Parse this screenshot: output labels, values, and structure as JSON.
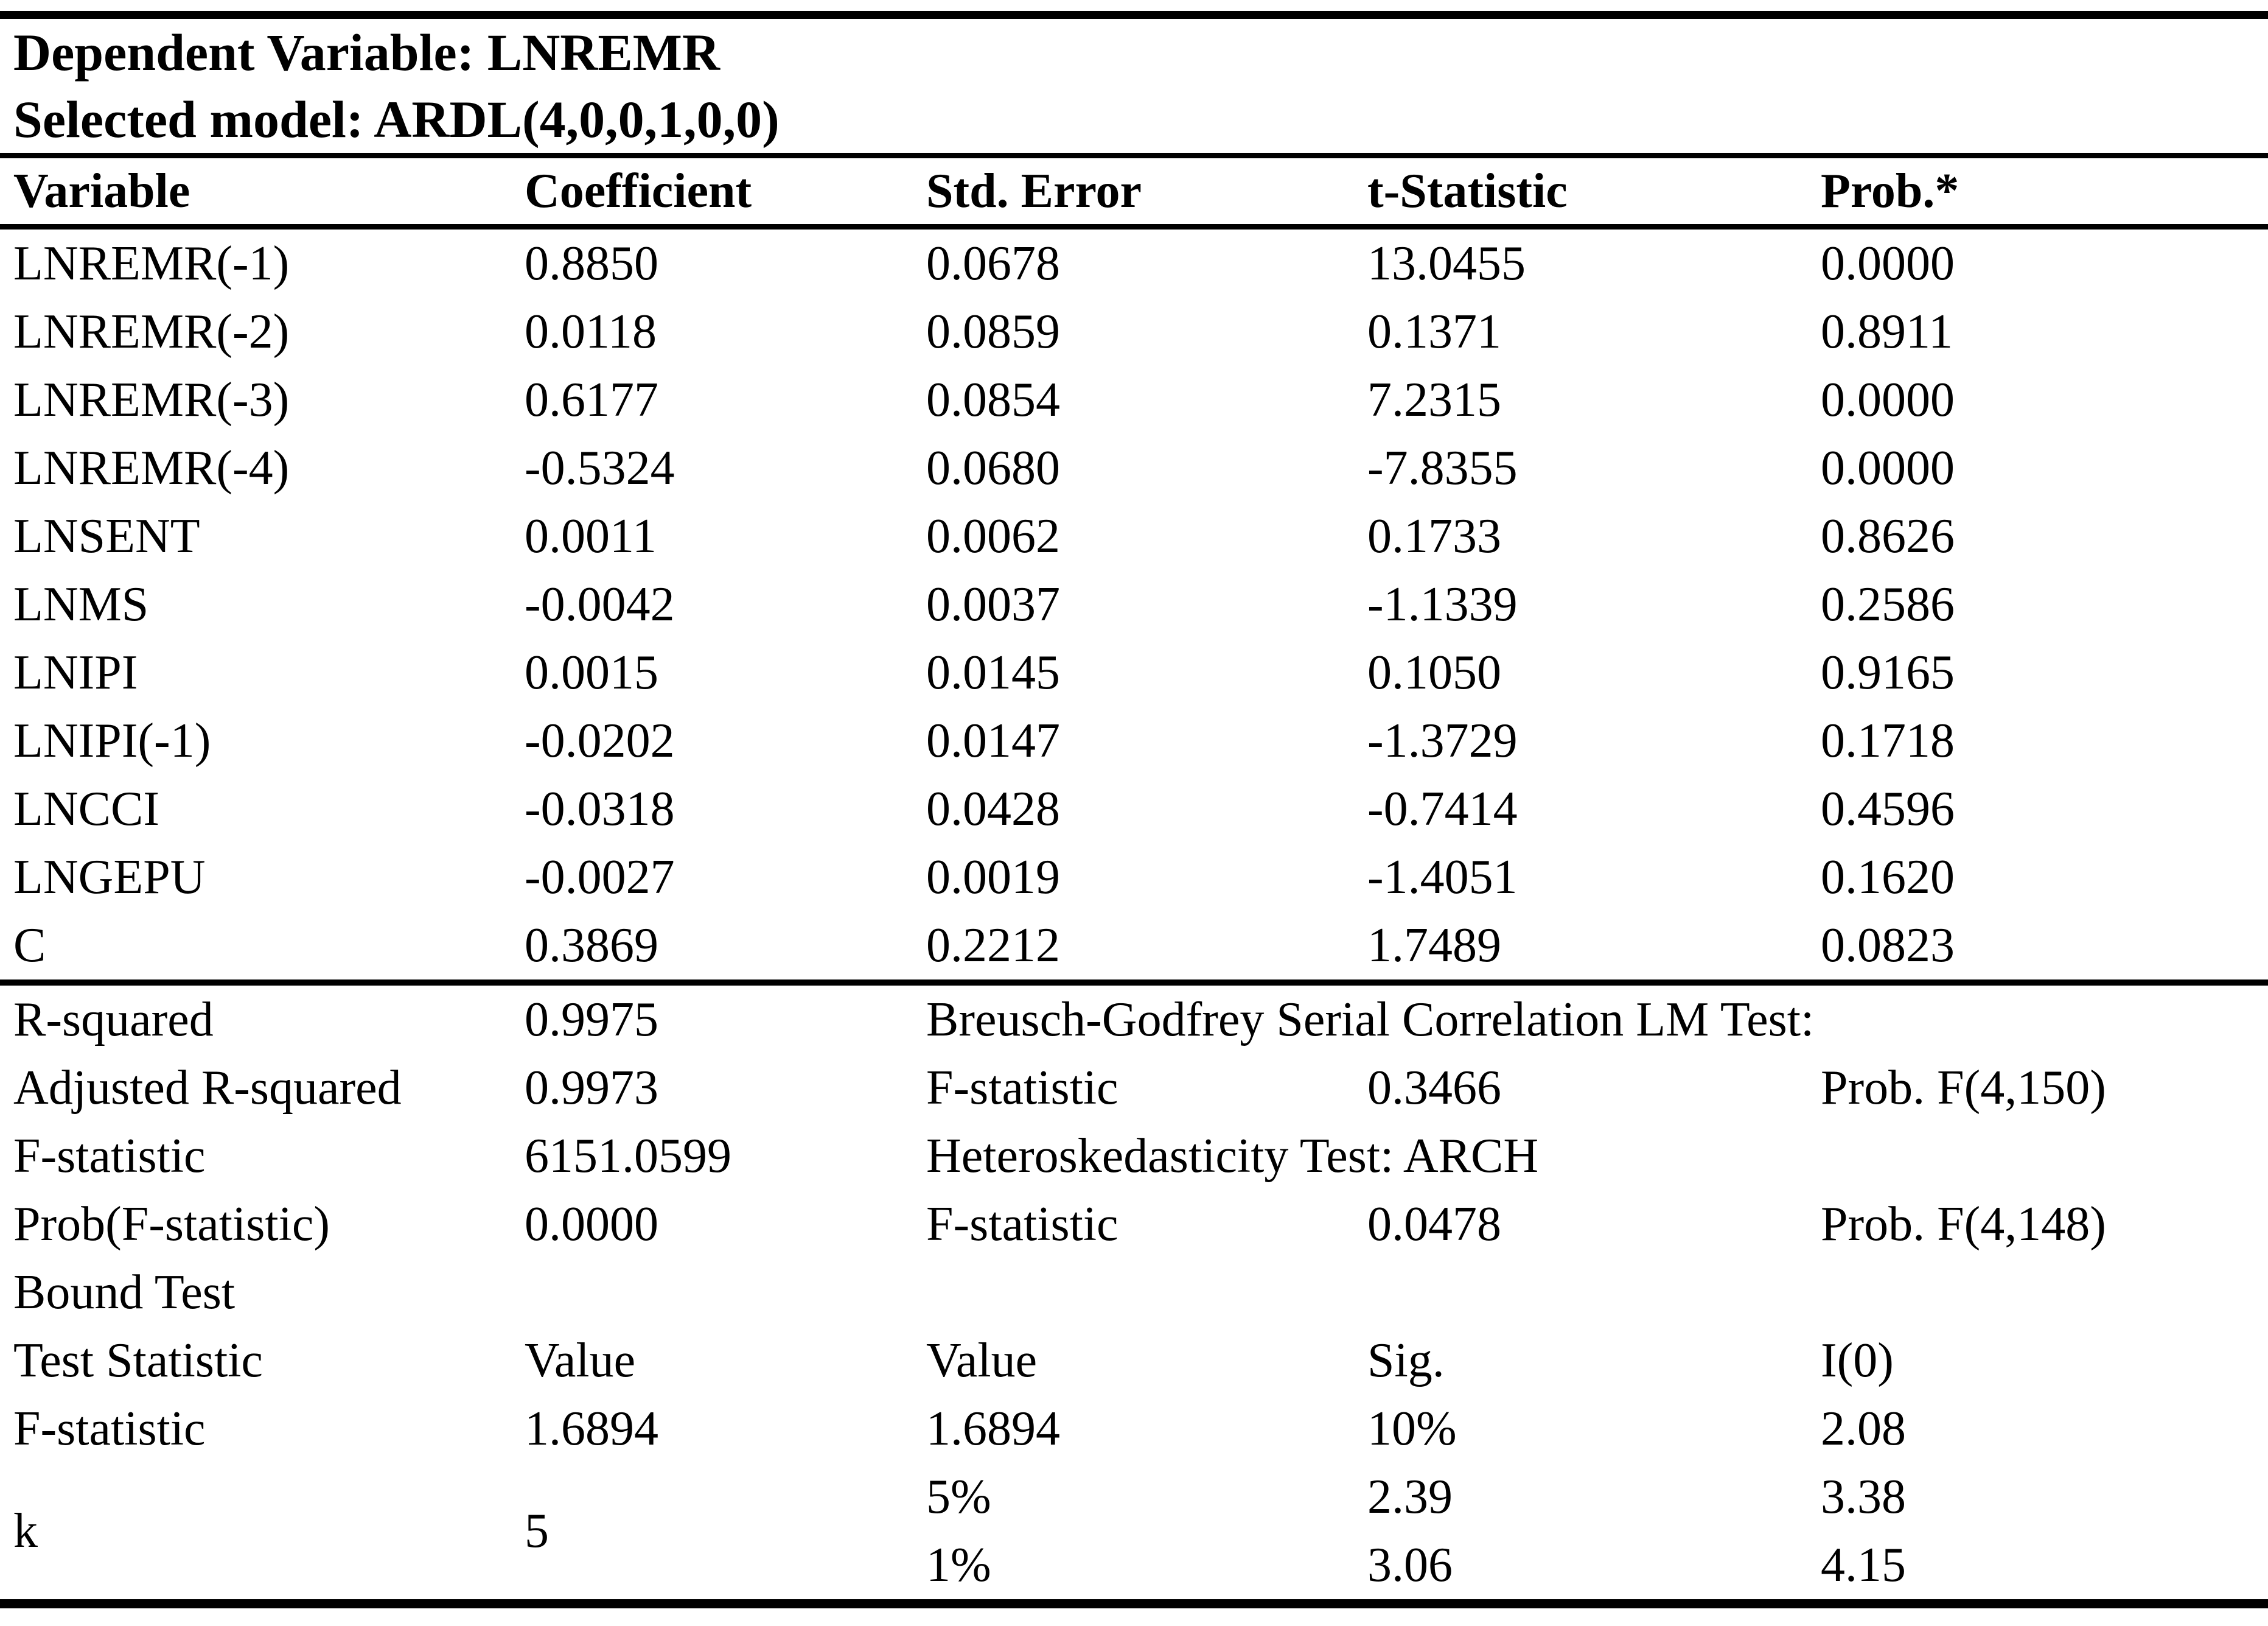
{
  "title": {
    "dependent_variable_line": "Dependent Variable: LNREMR",
    "selected_model_line": "Selected model: ARDL(4,0,0,1,0,0)"
  },
  "coefficient_table": {
    "columns": [
      "Variable",
      "Coefficient",
      "Std. Error",
      "t-Statistic",
      "Prob.*"
    ],
    "rows": [
      [
        "LNREMR(-1)",
        "0.8850",
        "0.0678",
        "13.0455",
        "0.0000"
      ],
      [
        "LNREMR(-2)",
        "0.0118",
        "0.0859",
        "0.1371",
        "0.8911"
      ],
      [
        "LNREMR(-3)",
        "0.6177",
        "0.0854",
        "7.2315",
        "0.0000"
      ],
      [
        "LNREMR(-4)",
        "-0.5324",
        "0.0680",
        "-7.8355",
        "0.0000"
      ],
      [
        "LNSENT",
        "0.0011",
        "0.0062",
        "0.1733",
        "0.8626"
      ],
      [
        "LNMS",
        "-0.0042",
        "0.0037",
        "-1.1339",
        "0.2586"
      ],
      [
        "LNIPI",
        "0.0015",
        "0.0145",
        "0.1050",
        "0.9165"
      ],
      [
        "LNIPI(-1)",
        "-0.0202",
        "0.0147",
        "-1.3729",
        "0.1718"
      ],
      [
        "LNCCI",
        "-0.0318",
        "0.0428",
        "-0.7414",
        "0.4596"
      ],
      [
        "LNGEPU",
        "-0.0027",
        "0.0019",
        "-1.4051",
        "0.1620"
      ],
      [
        "C",
        "0.3869",
        "0.2212",
        "1.7489",
        "0.0823"
      ]
    ]
  },
  "summary": {
    "rows": [
      {
        "cells": [
          {
            "c": 1,
            "t": "R-squared",
            "n": "r-squared-label"
          },
          {
            "c": 2,
            "t": "0.9975",
            "n": "r-squared-value"
          },
          {
            "c": 3,
            "cs": 3,
            "t": "Breusch-Godfrey Serial Correlation LM Test:",
            "n": "bg-lm-test-title"
          }
        ]
      },
      {
        "cells": [
          {
            "c": 1,
            "t": "Adjusted R-squared",
            "n": "adjusted-r-squared-label"
          },
          {
            "c": 2,
            "t": "0.9973",
            "n": "adjusted-r-squared-value"
          },
          {
            "c": 3,
            "t": "F-statistic",
            "n": "bg-f-statistic-label"
          },
          {
            "c": 4,
            "t": "0.3466",
            "n": "bg-f-statistic-value"
          },
          {
            "c": 5,
            "t": "Prob. F(4,150)",
            "n": "bg-prob-f-label"
          }
        ]
      },
      {
        "cells": [
          {
            "c": 1,
            "t": "F-statistic",
            "n": "model-f-statistic-label"
          },
          {
            "c": 2,
            "t": "6151.0599",
            "n": "model-f-statistic-value"
          },
          {
            "c": 3,
            "cs": 3,
            "t": "Heteroskedasticity Test: ARCH",
            "n": "arch-test-title"
          }
        ]
      },
      {
        "cells": [
          {
            "c": 1,
            "t": "Prob(F-statistic)",
            "n": "prob-f-statistic-label"
          },
          {
            "c": 2,
            "t": "0.0000",
            "n": "prob-f-statistic-value"
          },
          {
            "c": 3,
            "t": "F-statistic",
            "n": "arch-f-statistic-label"
          },
          {
            "c": 4,
            "t": "0.0478",
            "n": "arch-f-statistic-value"
          },
          {
            "c": 5,
            "t": "Prob. F(4,148)",
            "n": "arch-prob-f-label"
          }
        ]
      },
      {
        "cells": [
          {
            "c": 1,
            "cs": 5,
            "t": "Bound Test",
            "n": "bound-test-title"
          }
        ]
      },
      {
        "cells": [
          {
            "c": 1,
            "t": "Test Statistic",
            "n": "bound-test-header-statistic"
          },
          {
            "c": 2,
            "t": "Value",
            "n": "bound-test-header-value-1"
          },
          {
            "c": 3,
            "t": "Value",
            "n": "bound-test-header-value-2"
          },
          {
            "c": 4,
            "t": "Sig.",
            "n": "bound-test-header-sig"
          },
          {
            "c": 5,
            "t": "I(0)",
            "n": "bound-test-header-i0"
          }
        ]
      },
      {
        "cells": [
          {
            "c": 1,
            "t": "F-statistic",
            "n": "bound-f-statistic-label"
          },
          {
            "c": 2,
            "t": "1.6894",
            "n": "bound-f-statistic-value-1"
          },
          {
            "c": 3,
            "t": "1.6894",
            "n": "bound-f-statistic-value-2"
          },
          {
            "c": 4,
            "t": "10%",
            "n": "bound-sig-10pct"
          },
          {
            "c": 5,
            "t": "2.08",
            "n": "bound-i0-10pct"
          }
        ]
      },
      {
        "cells": [
          {
            "c": 1,
            "rs": 2,
            "t": "k",
            "n": "bound-k-label"
          },
          {
            "c": 2,
            "rs": 2,
            "t": "5",
            "n": "bound-k-value"
          },
          {
            "c": 3,
            "t": "5%",
            "n": "bound-sig-5pct"
          },
          {
            "c": 4,
            "t": "2.39",
            "n": "bound-crit-5pct-a"
          },
          {
            "c": 5,
            "t": "3.38",
            "n": "bound-crit-5pct-b"
          }
        ]
      },
      {
        "cells": [
          {
            "c": 3,
            "t": "1%",
            "n": "bound-sig-1pct"
          },
          {
            "c": 4,
            "t": "3.06",
            "n": "bound-crit-1pct-a"
          },
          {
            "c": 5,
            "t": "4.15",
            "n": "bound-crit-1pct-b"
          }
        ]
      }
    ]
  }
}
